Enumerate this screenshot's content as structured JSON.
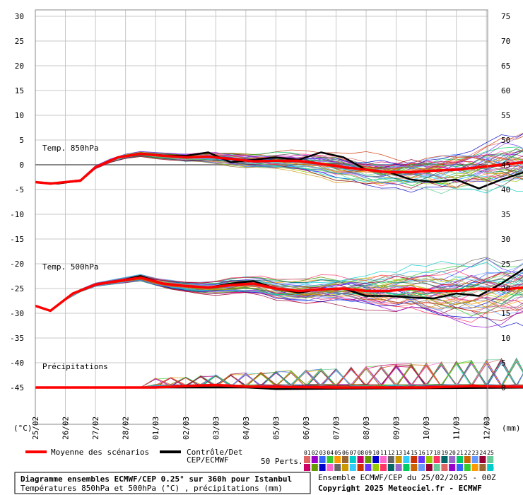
{
  "chart_data": {
    "type": "line",
    "title": "Diagramme ensembles ECMWF/CEP 0.25° sur 360h pour Istanbul",
    "subtitle": "Températures 850hPa et 500hPa (°C) , précipitations (mm)",
    "run_info": "Ensemble ECMWF/CEP du 25/02/2025 - 00Z",
    "copyright": "Copyright 2025 Meteociel.fr - ECMWF",
    "left_unit": "(°C)",
    "right_unit": "(mm)",
    "left_ticks": [
      30,
      25,
      20,
      15,
      10,
      5,
      0,
      -5,
      -10,
      -15,
      -20,
      -25,
      -30,
      -35,
      -40,
      -45
    ],
    "right_ticks": [
      75,
      70,
      65,
      60,
      55,
      50,
      45,
      40,
      35,
      30,
      25,
      20,
      15,
      10,
      5,
      0
    ],
    "dates": [
      "25/02",
      "26/02",
      "27/02",
      "28/02",
      "01/03",
      "02/03",
      "03/03",
      "04/03",
      "05/03",
      "06/03",
      "07/03",
      "08/03",
      "09/03",
      "10/03",
      "11/03",
      "12/03"
    ],
    "x_unit": "steps (6h) from 25/02 00Z",
    "section_labels": {
      "t850": "Temp. 850hPa",
      "t500": "Temp. 500hPa",
      "precip": "Précipitations"
    },
    "legend": {
      "mean_label": "Moyenne des scénarios",
      "control_label_1": "Contrôle/Det",
      "control_label_2": "CEP/ECMWF",
      "perts_label": "50 Perts.",
      "members_row1": [
        "01",
        "02",
        "03",
        "04",
        "05",
        "06",
        "07",
        "08",
        "09",
        "10",
        "11",
        "12",
        "13",
        "14",
        "15",
        "16",
        "17",
        "18",
        "19",
        "20",
        "21",
        "22",
        "23",
        "24",
        "25"
      ],
      "members_row2": [
        "26",
        "27",
        "28",
        "29",
        "30",
        "31",
        "32",
        "33",
        "34",
        "35",
        "36",
        "37",
        "38",
        "39",
        "40",
        "41",
        "42",
        "43",
        "44",
        "45",
        "46",
        "47",
        "48",
        "49",
        "50"
      ]
    },
    "colors": {
      "mean": "#ff0000",
      "control": "#000000",
      "grid": "#c8c8c8",
      "members": [
        "#e06666",
        "#9900cc",
        "#3366ff",
        "#33cc33",
        "#ff9900",
        "#996633",
        "#00cccc",
        "#cc0066",
        "#669900",
        "#0000cc",
        "#ff66cc",
        "#666666",
        "#cc9900",
        "#33ccff",
        "#cc3300",
        "#6633ff",
        "#99cc00",
        "#ff3366",
        "#006666",
        "#9966cc",
        "#00cc66",
        "#cc6600",
        "#6699ff",
        "#990033",
        "#66cc99"
      ]
    },
    "series": {
      "t850_mean": [
        [
          0,
          -3.5
        ],
        [
          2,
          -3.8
        ],
        [
          6,
          -3.2
        ],
        [
          8,
          -0.5
        ],
        [
          11,
          1.5
        ],
        [
          14,
          2.2
        ],
        [
          17,
          1.8
        ],
        [
          20,
          1.5
        ],
        [
          23,
          1.6
        ],
        [
          26,
          1.2
        ],
        [
          29,
          0.7
        ],
        [
          32,
          0.8
        ],
        [
          35,
          0.8
        ],
        [
          38,
          0.2
        ],
        [
          41,
          -0.5
        ],
        [
          44,
          -1
        ],
        [
          47,
          -1.5
        ],
        [
          50,
          -1.5
        ],
        [
          53,
          -1.2
        ],
        [
          56,
          -1
        ],
        [
          59,
          -0.5
        ],
        [
          62,
          0
        ],
        [
          65,
          0.5
        ],
        [
          68,
          1
        ],
        [
          71,
          1.5
        ],
        [
          74,
          2
        ],
        [
          77,
          2.8
        ],
        [
          80,
          3
        ],
        [
          83,
          3.1
        ],
        [
          86,
          3.3
        ],
        [
          89,
          3.5
        ],
        [
          92,
          3.8
        ],
        [
          95,
          3.8
        ],
        [
          98,
          3.5
        ],
        [
          101,
          3.8
        ],
        [
          104,
          4
        ],
        [
          107,
          4
        ]
      ],
      "t850_control": [
        [
          0,
          -3.5
        ],
        [
          3,
          -3.8
        ],
        [
          6,
          -3.2
        ],
        [
          8,
          -0.5
        ],
        [
          11,
          1.5
        ],
        [
          14,
          2.3
        ],
        [
          17,
          1.9
        ],
        [
          20,
          1.8
        ],
        [
          23,
          2.5
        ],
        [
          26,
          0.5
        ],
        [
          29,
          1
        ],
        [
          32,
          1.5
        ],
        [
          35,
          1
        ],
        [
          38,
          2.5
        ],
        [
          41,
          1.5
        ],
        [
          44,
          -1
        ],
        [
          47,
          -1.5
        ],
        [
          50,
          -3
        ],
        [
          53,
          -3.5
        ],
        [
          56,
          -3
        ],
        [
          59,
          -4.8
        ],
        [
          62,
          -3
        ],
        [
          65,
          -1.5
        ],
        [
          68,
          0
        ],
        [
          71,
          1
        ],
        [
          74,
          2
        ],
        [
          77,
          3.5
        ],
        [
          80,
          5
        ],
        [
          83,
          6
        ],
        [
          86,
          8
        ],
        [
          89,
          7
        ],
        [
          92,
          6
        ],
        [
          95,
          5.5
        ],
        [
          98,
          5.5
        ],
        [
          101,
          5
        ],
        [
          104,
          6
        ],
        [
          107,
          3
        ],
        [
          110,
          2.5
        ],
        [
          113,
          3
        ],
        [
          116,
          3.2
        ]
      ],
      "t500_mean": [
        [
          0,
          -28.5
        ],
        [
          2,
          -29.5
        ],
        [
          5,
          -26
        ],
        [
          8,
          -24.2
        ],
        [
          11,
          -23.5
        ],
        [
          14,
          -22.8
        ],
        [
          17,
          -24
        ],
        [
          20,
          -24.5
        ],
        [
          23,
          -24.8
        ],
        [
          26,
          -24.3
        ],
        [
          29,
          -24
        ],
        [
          32,
          -25
        ],
        [
          35,
          -25.5
        ],
        [
          38,
          -25.2
        ],
        [
          41,
          -25
        ],
        [
          44,
          -25.5
        ],
        [
          47,
          -25.5
        ],
        [
          50,
          -25
        ],
        [
          53,
          -25.5
        ],
        [
          56,
          -25.5
        ],
        [
          59,
          -25
        ],
        [
          62,
          -25.2
        ],
        [
          65,
          -24.8
        ],
        [
          68,
          -24.5
        ],
        [
          71,
          -24
        ],
        [
          74,
          -23.5
        ],
        [
          77,
          -22.5
        ],
        [
          80,
          -21.8
        ],
        [
          83,
          -21.5
        ],
        [
          86,
          -21.3
        ],
        [
          89,
          -21
        ],
        [
          92,
          -21
        ],
        [
          95,
          -21.2
        ],
        [
          98,
          -21.3
        ],
        [
          101,
          -21.5
        ],
        [
          104,
          -21.2
        ],
        [
          107,
          -21
        ],
        [
          110,
          -21
        ],
        [
          113,
          -20.8
        ],
        [
          116,
          -20.5
        ]
      ],
      "t500_control": [
        [
          0,
          -28.5
        ],
        [
          2,
          -29.5
        ],
        [
          5,
          -26
        ],
        [
          8,
          -24.2
        ],
        [
          11,
          -23.5
        ],
        [
          14,
          -22.5
        ],
        [
          17,
          -24
        ],
        [
          20,
          -24.5
        ],
        [
          23,
          -24.8
        ],
        [
          26,
          -24
        ],
        [
          29,
          -23.5
        ],
        [
          32,
          -25
        ],
        [
          35,
          -25.8
        ],
        [
          38,
          -25.2
        ],
        [
          41,
          -25
        ],
        [
          44,
          -26.5
        ],
        [
          47,
          -26.5
        ],
        [
          50,
          -26.8
        ],
        [
          53,
          -27
        ],
        [
          56,
          -26
        ],
        [
          59,
          -26.5
        ],
        [
          62,
          -24
        ],
        [
          65,
          -21
        ],
        [
          68,
          -20.5
        ],
        [
          71,
          -18
        ],
        [
          74,
          -17
        ],
        [
          77,
          -16
        ],
        [
          80,
          -16
        ],
        [
          83,
          -17
        ],
        [
          86,
          -19
        ],
        [
          89,
          -21.5
        ],
        [
          92,
          -22
        ],
        [
          95,
          -22.5
        ],
        [
          98,
          -21.5
        ],
        [
          101,
          -22
        ],
        [
          104,
          -22.5
        ],
        [
          107,
          -23
        ],
        [
          110,
          -24
        ],
        [
          113,
          -20
        ],
        [
          116,
          -19
        ]
      ],
      "precip_mean": [
        [
          0,
          0
        ],
        [
          16,
          0
        ],
        [
          20,
          0.3
        ],
        [
          24,
          0.5
        ],
        [
          28,
          0.2
        ],
        [
          40,
          0
        ],
        [
          52,
          0
        ],
        [
          58,
          0.3
        ],
        [
          62,
          0.2
        ],
        [
          72,
          0
        ],
        [
          84,
          0.2
        ],
        [
          90,
          0.5
        ],
        [
          94,
          0.8
        ],
        [
          98,
          0.6
        ],
        [
          104,
          0
        ],
        [
          116,
          0
        ]
      ],
      "precip_control": [
        [
          0,
          0
        ],
        [
          28,
          0
        ],
        [
          32,
          -0.3
        ],
        [
          70,
          0
        ],
        [
          84,
          -0.5
        ],
        [
          96,
          -0.5
        ],
        [
          100,
          0
        ],
        [
          110,
          4
        ],
        [
          114,
          0
        ],
        [
          116,
          -0.2
        ]
      ]
    }
  }
}
